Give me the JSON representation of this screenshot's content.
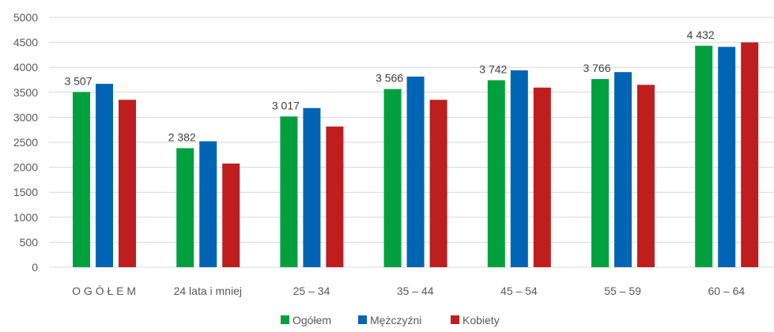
{
  "chart_data": {
    "type": "bar",
    "title": "",
    "xlabel": "",
    "ylabel": "",
    "ylim": [
      0,
      5000
    ],
    "yticks": [
      "0",
      "500",
      "1000",
      "1500",
      "2000",
      "2500",
      "3000",
      "3500",
      "4000",
      "4500",
      "5000"
    ],
    "grid": true,
    "legend_position": "bottom",
    "categories": [
      "O G Ó Ł E M",
      "24 lata i mniej",
      "25 – 34",
      "35 – 44",
      "45 – 54",
      "55 – 59",
      "60 – 64"
    ],
    "series": [
      {
        "name": "Ogółem",
        "color": "#00a03e",
        "values": [
          3507,
          2382,
          3017,
          3566,
          3742,
          3766,
          4432
        ],
        "labels": [
          "3 507",
          "2 382",
          "3 017",
          "3 566",
          "3 742",
          "3 766",
          "4 432"
        ]
      },
      {
        "name": "Mężczyźni",
        "color": "#0064b4",
        "values": [
          3670,
          2520,
          3185,
          3815,
          3940,
          3905,
          4410
        ]
      },
      {
        "name": "Kobiety",
        "color": "#be1e1e",
        "values": [
          3350,
          2075,
          2815,
          3350,
          3595,
          3650,
          4500
        ]
      }
    ]
  }
}
